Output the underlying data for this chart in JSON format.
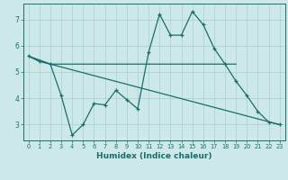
{
  "xlabel": "Humidex (Indice chaleur)",
  "ylabel": "",
  "bg_color": "#cce8e8",
  "line_color": "#1a6e6a",
  "grid_color": "#aacfcf",
  "xlim": [
    -0.5,
    23.5
  ],
  "ylim": [
    2.4,
    7.6
  ],
  "xticks": [
    0,
    1,
    2,
    3,
    4,
    5,
    6,
    7,
    8,
    9,
    10,
    11,
    12,
    13,
    14,
    15,
    16,
    17,
    18,
    19,
    20,
    21,
    22,
    23
  ],
  "yticks": [
    3,
    4,
    5,
    6,
    7
  ],
  "line1_x": [
    0,
    2,
    19
  ],
  "line1_y": [
    5.6,
    5.3,
    5.3
  ],
  "line2_x": [
    0,
    1,
    2,
    3,
    4,
    5,
    6,
    7,
    8,
    9,
    10,
    11,
    12,
    13,
    14,
    15,
    16,
    17,
    18,
    19,
    20,
    21,
    22,
    23
  ],
  "line2_y": [
    5.6,
    5.4,
    5.3,
    4.1,
    2.6,
    3.0,
    3.8,
    3.75,
    4.3,
    3.95,
    3.6,
    5.75,
    7.2,
    6.4,
    6.4,
    7.3,
    6.8,
    5.9,
    5.3,
    4.65,
    4.1,
    3.5,
    3.1,
    3.0
  ],
  "line3_x": [
    0,
    2,
    23
  ],
  "line3_y": [
    5.6,
    5.3,
    3.0
  ]
}
